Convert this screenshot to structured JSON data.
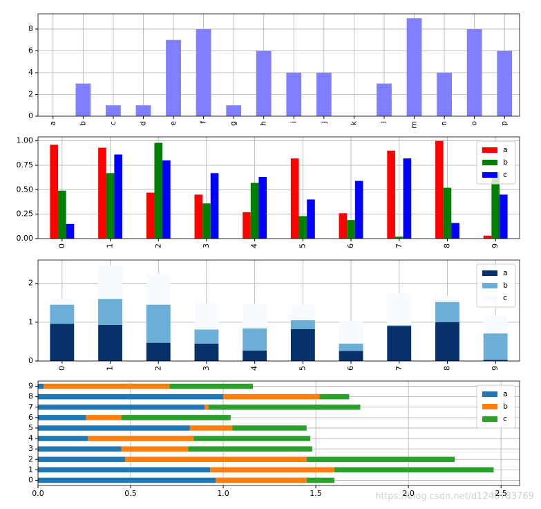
{
  "chart_data": [
    {
      "type": "bar",
      "categories": [
        "a",
        "b",
        "c",
        "d",
        "e",
        "f",
        "g",
        "h",
        "i",
        "j",
        "k",
        "l",
        "m",
        "n",
        "o",
        "p"
      ],
      "values": [
        0,
        3,
        1,
        1,
        7,
        8,
        1,
        6,
        4,
        4,
        0,
        3,
        9,
        4,
        8,
        6
      ],
      "color": "#8080ff",
      "ylim": [
        0,
        9.4
      ],
      "yticks": [
        0,
        2,
        4,
        6,
        8
      ],
      "grid": true
    },
    {
      "type": "bar",
      "categories": [
        "0",
        "1",
        "2",
        "3",
        "4",
        "5",
        "6",
        "7",
        "8",
        "9"
      ],
      "series": [
        {
          "name": "a",
          "color": "#ff0000",
          "values": [
            0.96,
            0.93,
            0.47,
            0.45,
            0.27,
            0.82,
            0.26,
            0.9,
            1.0,
            0.03
          ]
        },
        {
          "name": "b",
          "color": "#008000",
          "values": [
            0.49,
            0.67,
            0.98,
            0.36,
            0.57,
            0.23,
            0.19,
            0.02,
            0.52,
            0.68
          ]
        },
        {
          "name": "c",
          "color": "#0000ff",
          "values": [
            0.15,
            0.86,
            0.8,
            0.67,
            0.63,
            0.4,
            0.59,
            0.82,
            0.16,
            0.45
          ]
        }
      ],
      "ylim": [
        0,
        1.04
      ],
      "yticks": [
        {
          "value": 0,
          "label": "0.00"
        },
        {
          "value": 0.25,
          "label": "0.25"
        },
        {
          "value": 0.5,
          "label": "0.50"
        },
        {
          "value": 0.75,
          "label": "0.75"
        },
        {
          "value": 1,
          "label": "1.00"
        }
      ],
      "grid": true,
      "legend": "upper right"
    },
    {
      "type": "bar",
      "stacked": true,
      "categories": [
        "0",
        "1",
        "2",
        "3",
        "4",
        "5",
        "6",
        "7",
        "8",
        "9"
      ],
      "series": [
        {
          "name": "a",
          "color": "#08306b",
          "values": [
            0.96,
            0.93,
            0.47,
            0.45,
            0.27,
            0.82,
            0.26,
            0.9,
            1.0,
            0.03
          ]
        },
        {
          "name": "b",
          "color": "#6baed6",
          "values": [
            0.49,
            0.67,
            0.98,
            0.36,
            0.57,
            0.23,
            0.19,
            0.02,
            0.52,
            0.68
          ]
        },
        {
          "name": "c",
          "color": "#f7fbff",
          "values": [
            0.15,
            0.86,
            0.8,
            0.67,
            0.63,
            0.4,
            0.59,
            0.82,
            0.16,
            0.45
          ]
        }
      ],
      "ylim": [
        0,
        2.6
      ],
      "yticks": [
        0,
        1,
        2
      ],
      "grid": true,
      "legend": "upper right"
    },
    {
      "type": "barh",
      "stacked": true,
      "categories": [
        "0",
        "1",
        "2",
        "3",
        "4",
        "5",
        "6",
        "7",
        "8",
        "9"
      ],
      "series": [
        {
          "name": "a",
          "color": "#1f77b4",
          "values": [
            0.96,
            0.93,
            0.47,
            0.45,
            0.27,
            0.82,
            0.26,
            0.9,
            1.0,
            0.03
          ]
        },
        {
          "name": "b",
          "color": "#ff7f0e",
          "values": [
            0.49,
            0.67,
            0.98,
            0.36,
            0.57,
            0.23,
            0.19,
            0.02,
            0.52,
            0.68
          ]
        },
        {
          "name": "c",
          "color": "#2ca02c",
          "values": [
            0.15,
            0.86,
            0.8,
            0.67,
            0.63,
            0.4,
            0.59,
            0.82,
            0.16,
            0.45
          ]
        }
      ],
      "xlim": [
        0,
        2.6
      ],
      "xticks": [
        {
          "value": 0,
          "label": "0.0"
        },
        0.5,
        {
          "value": 1,
          "label": "1.0"
        },
        1.5,
        {
          "value": 2,
          "label": "2.0"
        },
        2.5
      ],
      "grid": true,
      "legend": "upper right"
    }
  ],
  "watermark": "https://blog.csdn.net/d1240783769"
}
